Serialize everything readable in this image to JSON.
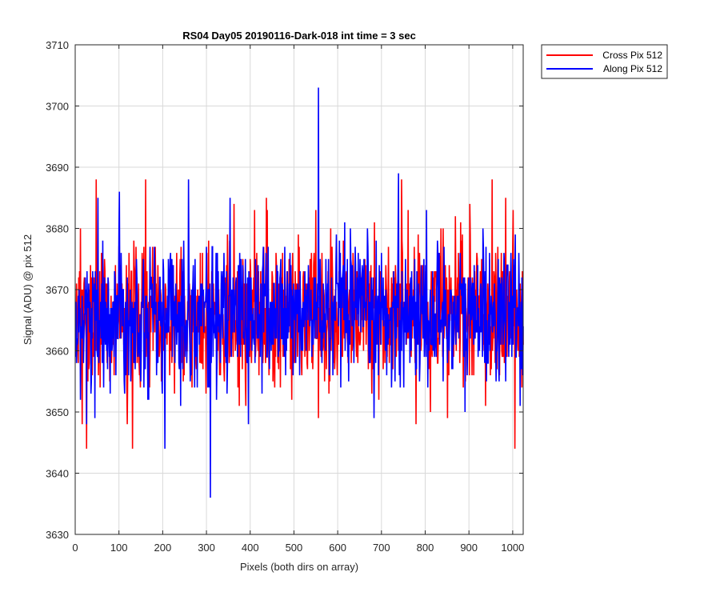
{
  "chart_data": {
    "type": "line",
    "title": "RS04 Day05 20190116-Dark-018 int time = 3 sec",
    "xlabel": "Pixels (both dirs on array)",
    "ylabel": "Signal (ADU) @ pix 512",
    "xlim": [
      0,
      1024
    ],
    "ylim": [
      3630,
      3710
    ],
    "xticks": [
      0,
      100,
      200,
      300,
      400,
      500,
      600,
      700,
      800,
      900,
      1000
    ],
    "yticks": [
      3630,
      3640,
      3650,
      3660,
      3670,
      3680,
      3690,
      3700,
      3710
    ],
    "grid": true,
    "legend_position": "outside-top-right",
    "series": [
      {
        "name": "Cross Pix 512",
        "color": "#ff0000",
        "mean": 3666,
        "noise_range": [
          3644,
          3688
        ],
        "notable_points": [
          {
            "x": 25,
            "y": 3644
          },
          {
            "x": 47,
            "y": 3688
          },
          {
            "x": 118,
            "y": 3648
          },
          {
            "x": 130,
            "y": 3644
          },
          {
            "x": 160,
            "y": 3688
          },
          {
            "x": 436,
            "y": 3685
          },
          {
            "x": 555,
            "y": 3649
          },
          {
            "x": 745,
            "y": 3688
          },
          {
            "x": 778,
            "y": 3648
          },
          {
            "x": 952,
            "y": 3688
          }
        ]
      },
      {
        "name": "Along Pix 512",
        "color": "#0000ff",
        "mean": 3666,
        "noise_range": [
          3647,
          3686
        ],
        "notable_points": [
          {
            "x": 25,
            "y": 3648
          },
          {
            "x": 44,
            "y": 3649
          },
          {
            "x": 100,
            "y": 3686
          },
          {
            "x": 204,
            "y": 3644
          },
          {
            "x": 258,
            "y": 3688
          },
          {
            "x": 308,
            "y": 3636
          },
          {
            "x": 555,
            "y": 3703
          },
          {
            "x": 738,
            "y": 3689
          },
          {
            "x": 890,
            "y": 3650
          }
        ]
      }
    ]
  }
}
